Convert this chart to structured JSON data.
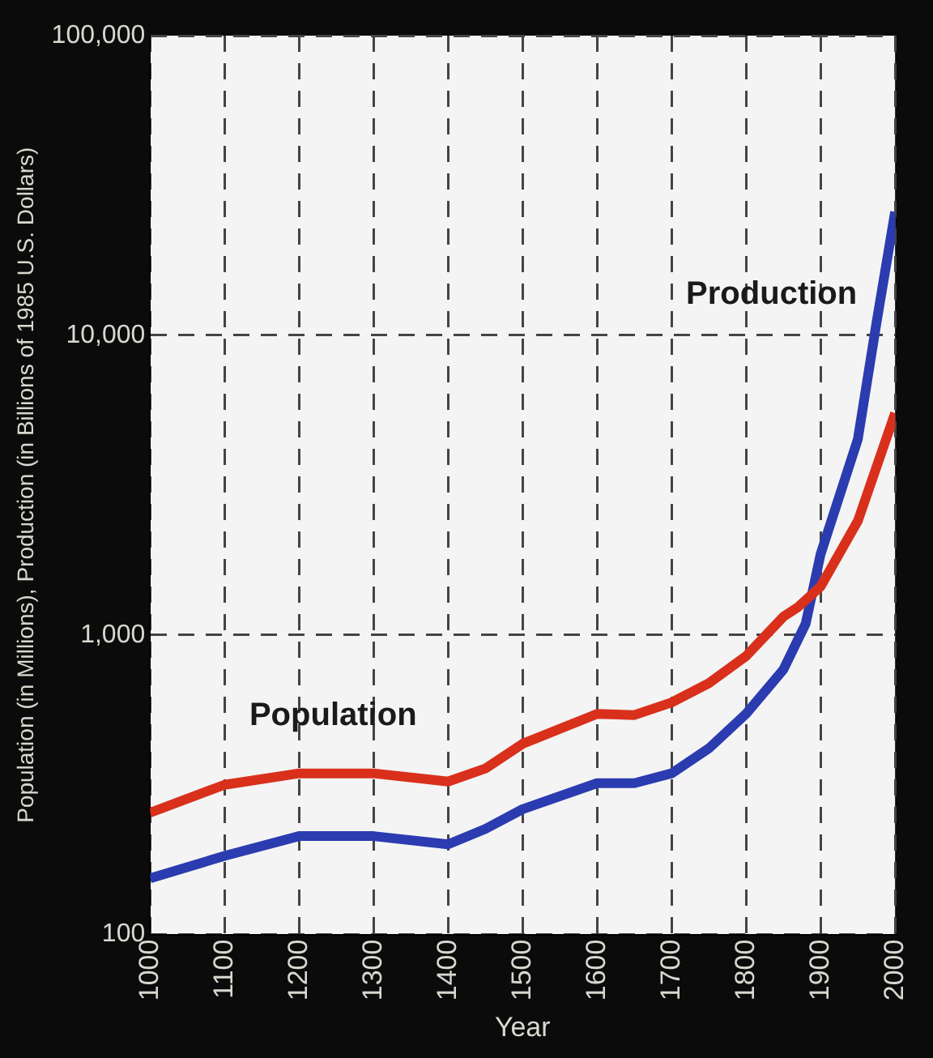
{
  "chart_data": {
    "type": "line",
    "xlabel": "Year",
    "ylabel": "Population (in Millions), Production (in Billions of 1985 U.S. Dollars)",
    "log": "y",
    "grid": true,
    "legend": false,
    "marker": "none",
    "line_style": "solid",
    "xlim": [
      1000,
      2000
    ],
    "xticks": [
      1000,
      1100,
      1200,
      1300,
      1400,
      1500,
      1600,
      1700,
      1800,
      1900,
      2000
    ],
    "ylim": [
      100,
      100000
    ],
    "yticks": [
      100,
      {
        "value": 1000,
        "label": "1,000"
      },
      {
        "value": 10000,
        "label": "10,000"
      },
      {
        "value": 100000,
        "label": "100,000"
      }
    ],
    "series": [
      {
        "name": "Population",
        "color": "#d9301c",
        "x": [
          1000,
          1100,
          1200,
          1300,
          1400,
          1450,
          1500,
          1600,
          1650,
          1700,
          1750,
          1800,
          1850,
          1870,
          1900,
          1950,
          2000
        ],
        "values": [
          255,
          316,
          345,
          345,
          324,
          358,
          433,
          545,
          540,
          595,
          690,
          850,
          1150,
          1240,
          1450,
          2400,
          5500
        ]
      },
      {
        "name": "Production",
        "color": "#2b3cb0",
        "x": [
          1000,
          1100,
          1200,
          1300,
          1400,
          1450,
          1500,
          1600,
          1650,
          1700,
          1750,
          1800,
          1850,
          1880,
          1900,
          1950,
          1975,
          2000
        ],
        "values": [
          154,
          183,
          213,
          213,
          200,
          225,
          262,
          320,
          320,
          345,
          418,
          545,
          765,
          1090,
          1860,
          4500,
          11000,
          25800
        ]
      }
    ]
  }
}
